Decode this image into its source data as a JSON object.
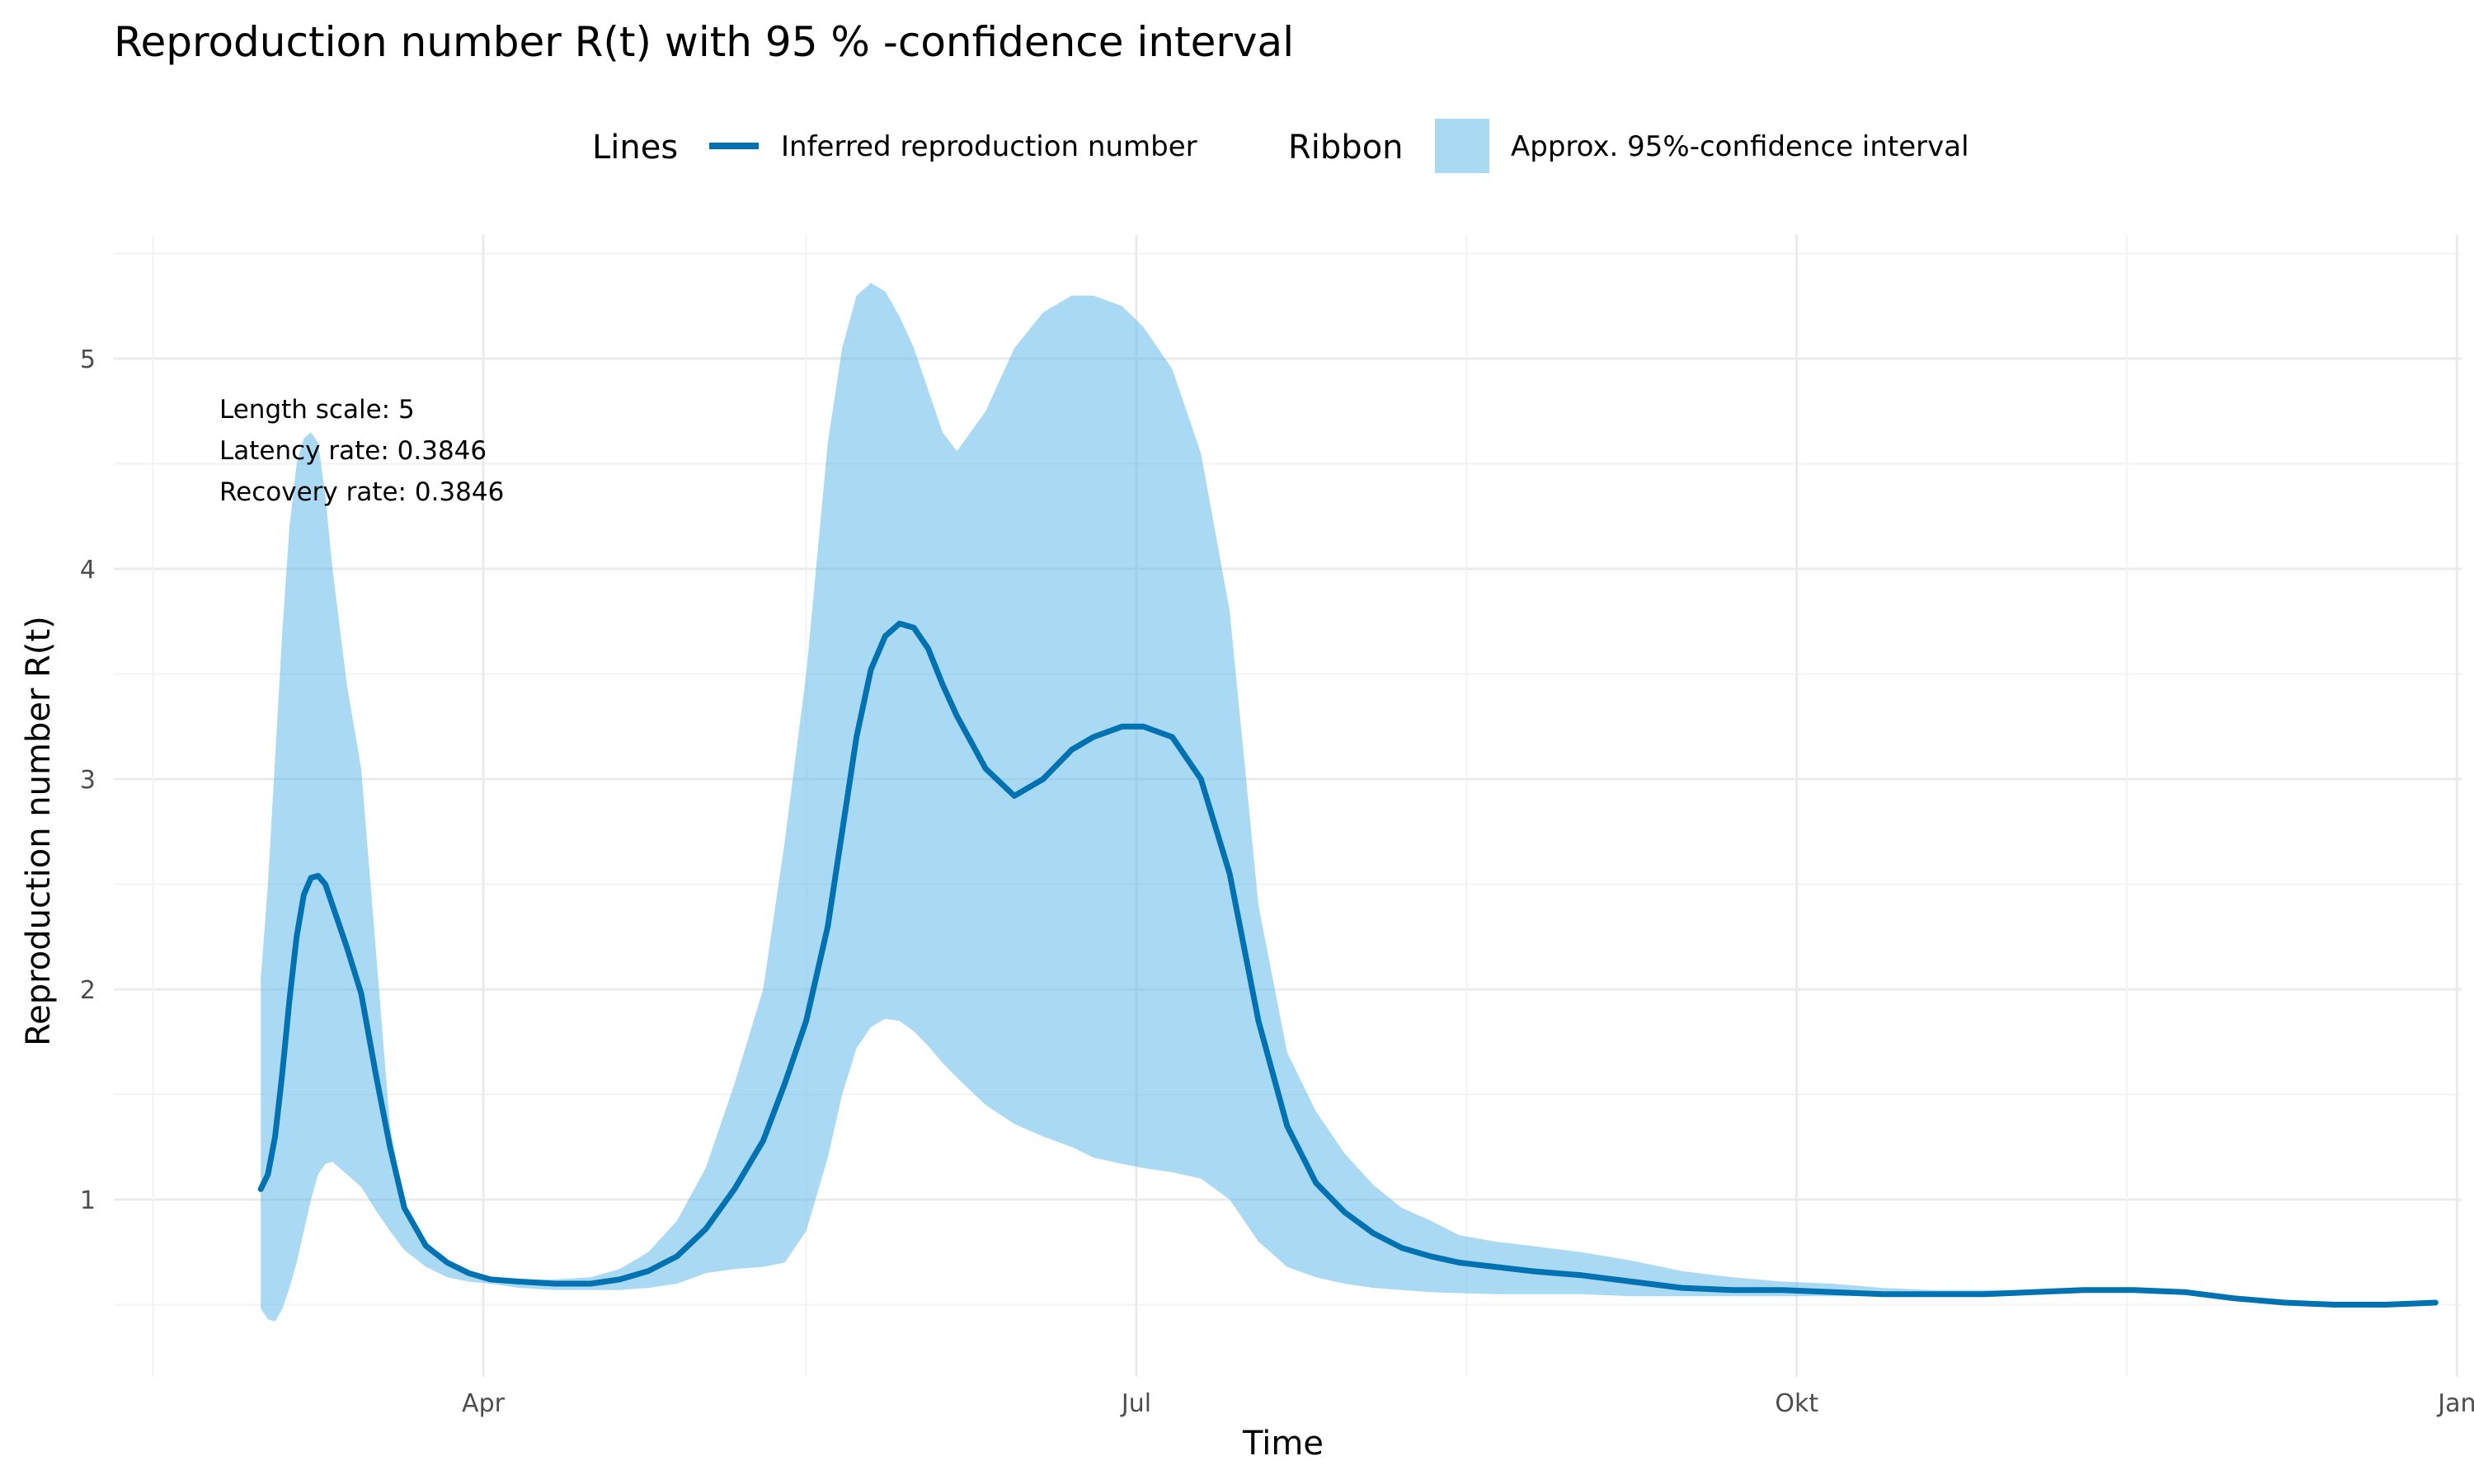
{
  "chart_data": {
    "type": "line",
    "title": "Reproduction number R(t) with 95 % -confidence interval",
    "xlabel": "Time",
    "ylabel": "Reproduction number R(t)",
    "legend": {
      "placement": "top",
      "lines_title": "Lines",
      "lines_label": "Inferred reproduction number",
      "ribbon_title": "Ribbon",
      "ribbon_label": "Approx.  95%-confidence interval"
    },
    "annotation": [
      "Length scale: 5",
      "Latency rate: 0.3846",
      "Recovery rate: 0.3846"
    ],
    "x_ticks": [
      "Apr",
      "Jul",
      "Okt",
      "Jan"
    ],
    "y_ticks": [
      "1",
      "2",
      "3",
      "4",
      "5"
    ],
    "ylim": [
      0.33,
      5.5
    ],
    "grid": true,
    "colors": {
      "line": "#0072b2",
      "ribbon": "#56b4e9",
      "ribbon_opacity": 0.5
    },
    "series": [
      {
        "name": "Inferred reproduction number",
        "x": [
          "2020-03-01",
          "2020-03-02",
          "2020-03-03",
          "2020-03-04",
          "2020-03-05",
          "2020-03-06",
          "2020-03-07",
          "2020-03-08",
          "2020-03-09",
          "2020-03-10",
          "2020-03-11",
          "2020-03-13",
          "2020-03-15",
          "2020-03-17",
          "2020-03-19",
          "2020-03-21",
          "2020-03-24",
          "2020-03-27",
          "2020-03-30",
          "2020-04-02",
          "2020-04-06",
          "2020-04-11",
          "2020-04-16",
          "2020-04-20",
          "2020-04-24",
          "2020-04-28",
          "2020-05-02",
          "2020-05-06",
          "2020-05-10",
          "2020-05-13",
          "2020-05-16",
          "2020-05-19",
          "2020-05-21",
          "2020-05-23",
          "2020-05-25",
          "2020-05-27",
          "2020-05-29",
          "2020-05-31",
          "2020-06-02",
          "2020-06-04",
          "2020-06-06",
          "2020-06-10",
          "2020-06-14",
          "2020-06-18",
          "2020-06-22",
          "2020-06-25",
          "2020-06-29",
          "2020-07-02",
          "2020-07-06",
          "2020-07-10",
          "2020-07-14",
          "2020-07-18",
          "2020-07-22",
          "2020-07-26",
          "2020-07-30",
          "2020-08-03",
          "2020-08-07",
          "2020-08-11",
          "2020-08-15",
          "2020-08-20",
          "2020-08-25",
          "2020-09-01",
          "2020-09-08",
          "2020-09-15",
          "2020-09-22",
          "2020-09-29",
          "2020-10-06",
          "2020-10-13",
          "2020-10-20",
          "2020-10-27",
          "2020-11-03",
          "2020-11-10",
          "2020-11-17",
          "2020-11-24",
          "2020-12-01",
          "2020-12-08",
          "2020-12-15",
          "2020-12-22",
          "2020-12-29"
        ],
        "y": [
          1.05,
          1.12,
          1.3,
          1.6,
          1.95,
          2.25,
          2.45,
          2.53,
          2.54,
          2.5,
          2.4,
          2.2,
          1.98,
          1.6,
          1.25,
          0.96,
          0.78,
          0.7,
          0.65,
          0.62,
          0.61,
          0.6,
          0.6,
          0.62,
          0.66,
          0.73,
          0.86,
          1.05,
          1.28,
          1.55,
          1.85,
          2.3,
          2.75,
          3.2,
          3.52,
          3.68,
          3.74,
          3.72,
          3.62,
          3.45,
          3.3,
          3.05,
          2.92,
          3.0,
          3.14,
          3.2,
          3.25,
          3.25,
          3.2,
          3.0,
          2.55,
          1.85,
          1.35,
          1.08,
          0.94,
          0.84,
          0.77,
          0.73,
          0.7,
          0.68,
          0.66,
          0.64,
          0.61,
          0.58,
          0.57,
          0.57,
          0.56,
          0.55,
          0.55,
          0.55,
          0.56,
          0.57,
          0.57,
          0.56,
          0.53,
          0.51,
          0.5,
          0.5,
          0.51
        ]
      },
      {
        "name": "Approx.  95%-confidence interval",
        "x": [
          "2020-03-01",
          "2020-03-02",
          "2020-03-03",
          "2020-03-04",
          "2020-03-05",
          "2020-03-06",
          "2020-03-07",
          "2020-03-08",
          "2020-03-09",
          "2020-03-10",
          "2020-03-11",
          "2020-03-13",
          "2020-03-15",
          "2020-03-17",
          "2020-03-19",
          "2020-03-21",
          "2020-03-24",
          "2020-03-27",
          "2020-03-30",
          "2020-04-02",
          "2020-04-06",
          "2020-04-11",
          "2020-04-16",
          "2020-04-20",
          "2020-04-24",
          "2020-04-28",
          "2020-05-02",
          "2020-05-06",
          "2020-05-10",
          "2020-05-13",
          "2020-05-16",
          "2020-05-19",
          "2020-05-21",
          "2020-05-23",
          "2020-05-25",
          "2020-05-27",
          "2020-05-29",
          "2020-05-31",
          "2020-06-02",
          "2020-06-04",
          "2020-06-06",
          "2020-06-10",
          "2020-06-14",
          "2020-06-18",
          "2020-06-22",
          "2020-06-25",
          "2020-06-29",
          "2020-07-02",
          "2020-07-06",
          "2020-07-10",
          "2020-07-14",
          "2020-07-18",
          "2020-07-22",
          "2020-07-26",
          "2020-07-30",
          "2020-08-03",
          "2020-08-07",
          "2020-08-11",
          "2020-08-15",
          "2020-08-20",
          "2020-08-25",
          "2020-09-01",
          "2020-09-08",
          "2020-09-15",
          "2020-09-22",
          "2020-09-29",
          "2020-10-06",
          "2020-10-13",
          "2020-10-20",
          "2020-10-27",
          "2020-11-03",
          "2020-11-10",
          "2020-11-17",
          "2020-11-24",
          "2020-12-01",
          "2020-12-08",
          "2020-12-15",
          "2020-12-22",
          "2020-12-29"
        ],
        "lower": [
          0.48,
          0.43,
          0.42,
          0.48,
          0.58,
          0.7,
          0.85,
          1.0,
          1.12,
          1.17,
          1.18,
          1.12,
          1.06,
          0.95,
          0.85,
          0.76,
          0.68,
          0.63,
          0.61,
          0.6,
          0.58,
          0.57,
          0.57,
          0.57,
          0.58,
          0.6,
          0.65,
          0.67,
          0.68,
          0.7,
          0.85,
          1.2,
          1.5,
          1.72,
          1.82,
          1.86,
          1.85,
          1.8,
          1.73,
          1.65,
          1.58,
          1.45,
          1.36,
          1.3,
          1.25,
          1.2,
          1.17,
          1.15,
          1.13,
          1.1,
          1.0,
          0.8,
          0.68,
          0.63,
          0.6,
          0.58,
          0.57,
          0.56,
          0.555,
          0.55,
          0.55,
          0.55,
          0.54,
          0.54,
          0.54,
          0.54,
          0.54,
          0.54,
          0.54,
          0.545,
          0.55,
          0.56,
          0.565,
          0.555,
          0.53,
          0.51,
          0.5,
          0.5,
          0.51
        ],
        "upper": [
          2.05,
          2.5,
          3.1,
          3.7,
          4.2,
          4.5,
          4.62,
          4.65,
          4.6,
          4.35,
          4.0,
          3.45,
          3.05,
          2.2,
          1.35,
          0.98,
          0.8,
          0.71,
          0.66,
          0.63,
          0.62,
          0.62,
          0.63,
          0.67,
          0.75,
          0.9,
          1.15,
          1.55,
          2.0,
          2.7,
          3.5,
          4.6,
          5.05,
          5.3,
          5.36,
          5.32,
          5.2,
          5.05,
          4.85,
          4.65,
          4.56,
          4.75,
          5.05,
          5.22,
          5.3,
          5.3,
          5.25,
          5.15,
          4.95,
          4.55,
          3.8,
          2.4,
          1.7,
          1.42,
          1.22,
          1.07,
          0.96,
          0.9,
          0.83,
          0.8,
          0.78,
          0.75,
          0.71,
          0.66,
          0.63,
          0.61,
          0.6,
          0.58,
          0.57,
          0.57,
          0.57,
          0.575,
          0.575,
          0.565,
          0.535,
          0.51,
          0.5,
          0.5,
          0.51
        ]
      }
    ]
  }
}
